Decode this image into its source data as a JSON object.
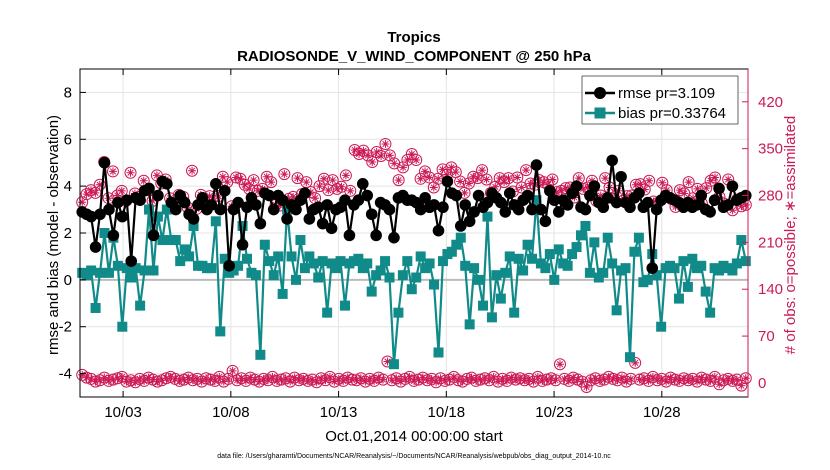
{
  "chart_data": {
    "type": "line",
    "title": "Tropics",
    "subtitle": "RADIOSONDE_V_WIND_COMPONENT @ 250 hPa",
    "xlabel": "Oct.01,2014 00:00:00 start",
    "ylabel": "rmse and bias (model - observation)",
    "ylabel_right": "# of obs: o=possible; ∗=assimilated",
    "footnote": "data file: /Users/gharamti/Documents/NCAR/Reanalysis/~/Documents/NCAR/Reanalysis/webpub/obs_diag_output_2014-10.nc",
    "xlim": [
      1,
      32
    ],
    "ylim": [
      -5,
      9
    ],
    "ylim_right": [
      -21,
      469
    ],
    "x_ticks": [
      3,
      8,
      13,
      18,
      23,
      28
    ],
    "x_tick_labels": [
      "10/03",
      "10/08",
      "10/13",
      "10/18",
      "10/23",
      "10/28"
    ],
    "y_ticks": [
      -4,
      -2,
      0,
      2,
      4,
      6,
      8
    ],
    "y_tick_labels": [
      "-4",
      "-2",
      "0",
      "2",
      "4",
      "6",
      "8"
    ],
    "y_right_ticks": [
      0,
      70,
      140,
      210,
      280,
      350,
      420
    ],
    "y_right_tick_labels": [
      "0",
      "70",
      "140",
      "210",
      "280",
      "350",
      "420"
    ],
    "grid": true,
    "zero_line": 0,
    "legend_position": "top-right",
    "colors": {
      "rmse": "#000000",
      "bias": "#118a8a",
      "obs": "#cc1a55",
      "zero": "#bbbbbb",
      "grid": "#e4e4e4"
    },
    "series": [
      {
        "name": "rmse pr=3.109",
        "marker": "circle",
        "values": [
          2.9,
          2.8,
          2.7,
          1.4,
          2.8,
          5.0,
          3.0,
          1.9,
          3.3,
          2.7,
          3.4,
          0.8,
          3.5,
          3.4,
          3.8,
          3.9,
          1.9,
          3.6,
          4.2,
          4.1,
          3.3,
          3.0,
          3.6,
          3.3,
          2.8,
          2.6,
          3.2,
          3.5,
          3.0,
          3.2,
          4.1,
          3.0,
          3.8,
          0.6,
          3.0,
          3.3,
          1.5,
          3.1,
          3.5,
          3.2,
          2.4,
          3.7,
          3.6,
          3.0,
          3.6,
          3.4,
          2.6,
          3.2,
          3.0,
          3.4,
          3.7,
          2.6,
          3.0,
          3.1,
          2.4,
          3.2,
          2.2,
          3.0,
          3.1,
          3.4,
          1.9,
          3.2,
          3.4,
          4.1,
          3.6,
          2.8,
          1.9,
          3.3,
          3.2,
          3.0,
          1.8,
          3.5,
          3.6,
          3.4,
          3.4,
          3.3,
          3.0,
          3.5,
          3.1,
          3.2,
          2.1,
          3.1,
          4.2,
          3.7,
          3.6,
          2.3,
          3.2,
          2.5,
          2.9,
          3.6,
          3.1,
          3.3,
          3.7,
          3.5,
          3.3,
          2.9,
          3.7,
          3.2,
          3.0,
          3.4,
          3.6,
          3.0,
          4.9,
          3.0,
          2.5,
          3.8,
          3.4,
          2.9,
          3.4,
          3.2,
          3.7,
          4.0,
          3.1,
          3.0,
          3.6,
          4.0,
          3.3,
          3.1,
          3.5,
          5.1,
          3.3,
          4.4,
          3.3,
          3.1,
          3.5,
          3.7,
          3.1,
          3.3,
          0.5,
          3.0,
          3.4,
          3.6,
          3.5,
          3.4,
          3.3,
          3.1,
          3.3,
          3.1,
          3.2,
          3.6,
          3.0,
          2.9,
          3.4,
          3.9,
          3.1,
          3.2,
          4.0,
          3.4,
          3.5,
          3.6
        ]
      },
      {
        "name": "bias pr=0.33764",
        "marker": "square",
        "values": [
          0.3,
          0.2,
          0.4,
          -1.2,
          0.3,
          2.0,
          0.3,
          1.8,
          0.6,
          -2.0,
          0.5,
          0.1,
          0.5,
          -1.1,
          0.4,
          3.0,
          0.4,
          2.7,
          1.7,
          3.0,
          1.7,
          1.7,
          0.8,
          1.3,
          1.0,
          2.3,
          0.6,
          0.6,
          0.5,
          0.5,
          2.5,
          -2.2,
          0.9,
          0.3,
          0.4,
          0.6,
          2.3,
          0.9,
          0.3,
          0.2,
          -3.2,
          1.5,
          0.8,
          0.2,
          1.0,
          -0.6,
          3.0,
          1.0,
          0.0,
          1.7,
          0.5,
          1.0,
          0.7,
          0.1,
          0.8,
          -1.4,
          0.7,
          0.5,
          0.8,
          -1.1,
          0.7,
          0.8,
          0.9,
          0.5,
          0.7,
          -0.5,
          0.2,
          0.4,
          0.8,
          0.1,
          -3.6,
          -1.4,
          0.2,
          0.8,
          -0.4,
          0.1,
          1.0,
          0.5,
          0.7,
          -0.2,
          -3.1,
          0.8,
          1.1,
          1.2,
          1.5,
          1.8,
          0.6,
          -1.9,
          0.5,
          0.0,
          -1.1,
          2.7,
          -1.6,
          0.2,
          -0.8,
          0.3,
          1.0,
          -1.4,
          0.9,
          0.4,
          1.5,
          0.9,
          3.4,
          0.7,
          0.5,
          1.1,
          0.0,
          1.3,
          0.7,
          0.6,
          1.1,
          1.4,
          1.9,
          2.3,
          0.3,
          1.6,
          0.1,
          0.3,
          1.8,
          0.7,
          -1.3,
          0.4,
          0.5,
          -3.3,
          1.2,
          1.8,
          -0.1,
          0.0,
          1.1,
          0.2,
          -2.0,
          0.5,
          0.6,
          0.5,
          -0.8,
          0.8,
          -0.3,
          0.9,
          0.5,
          0.6,
          -0.5,
          -1.4,
          0.5,
          0.4,
          0.6,
          0.5,
          0.4,
          0.7,
          1.7,
          0.8
        ]
      },
      {
        "name": "# obs possible",
        "marker": "circle-open",
        "axis": "right",
        "values": [
          12,
          8,
          6,
          2,
          4,
          8,
          3,
          5,
          7,
          9,
          2,
          4,
          1,
          6,
          3,
          8,
          5,
          2,
          4,
          7,
          9,
          6,
          3,
          5,
          8,
          4,
          6,
          2,
          7,
          5,
          3,
          9,
          2,
          6,
          18,
          4,
          7,
          3,
          8,
          5,
          2,
          6,
          4,
          9,
          3,
          5,
          7,
          2,
          8,
          4,
          6,
          3,
          5,
          1,
          7,
          4,
          9,
          2,
          6,
          3,
          8,
          5,
          4,
          7,
          2,
          6,
          3,
          8,
          5,
          32,
          4,
          7,
          2,
          6,
          9,
          3,
          5,
          8,
          4,
          6,
          1,
          7,
          3,
          5,
          9,
          4,
          2,
          6,
          8,
          3,
          5,
          7,
          4,
          9,
          2,
          6,
          3,
          8,
          5,
          7,
          4,
          6,
          2,
          9,
          3,
          5,
          7,
          4,
          28,
          6,
          3,
          8,
          5,
          2,
          -6,
          4,
          7,
          3,
          5,
          9,
          6,
          4,
          8,
          2,
          6,
          30,
          5,
          7,
          3,
          9,
          4,
          6,
          2,
          8,
          5,
          3,
          7,
          4,
          6,
          2,
          8,
          5,
          3,
          9,
          -2,
          4,
          6,
          3,
          5,
          -4,
          7
        ]
      },
      {
        "name": "# obs assimilated",
        "marker": "star",
        "axis": "right",
        "values": [
          270,
          282,
          288,
          284,
          296,
          330,
          276,
          316,
          280,
          287,
          272,
          314,
          283,
          278,
          302,
          288,
          272,
          310,
          298,
          304,
          276,
          266,
          281,
          278,
          262,
          317,
          260,
          281,
          265,
          279,
          272,
          279,
          308,
          300,
          264,
          307,
          305,
          296,
          290,
          303,
          287,
          290,
          308,
          300,
          266,
          265,
          312,
          275,
          278,
          306,
          282,
          300,
          285,
          276,
          294,
          305,
          288,
          303,
          290,
          293,
          310,
          287,
          348,
          342,
          347,
          340,
          330,
          345,
          339,
          357,
          340,
          328,
          303,
          322,
          333,
          342,
          333,
          305,
          316,
          307,
          292,
          305,
          319,
          311,
          322,
          315,
          301,
          284,
          298,
          308,
          306,
          318,
          304,
          284,
          293,
          306,
          300,
          306,
          286,
          307,
          292,
          318,
          298,
          296,
          303,
          300,
          296,
          304,
          285,
          287,
          291,
          292,
          277,
          306,
          290,
          292,
          302,
          272,
          280,
          306,
          292,
          275,
          287,
          272,
          279,
          280,
          296,
          297,
          289,
          302,
          271,
          269,
          299,
          288,
          275,
          263,
          288,
          283,
          300,
          276,
          290,
          268,
          291,
          302,
          307,
          278,
          268,
          304,
          258,
          274,
          264,
          266
        ]
      }
    ]
  }
}
